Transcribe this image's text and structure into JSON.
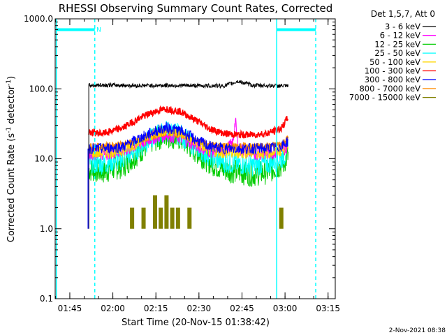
{
  "chart_data": {
    "type": "line",
    "title": "RHESSI Observing Summary Count Rates, Corrected",
    "xlabel": "Start Time (20-Nov-15 01:38:42)",
    "ylabel_main": "Corrected Count Rate (s",
    "ylabel_sup1": "-1",
    "ylabel_mid": " detector",
    "ylabel_sup2": "-1",
    "ylabel_end": ")",
    "yscale": "log",
    "ylim": [
      0.1,
      1000.0
    ],
    "xlim_minutes": [
      1.2,
      98.8
    ],
    "y_ticks": [
      "1000.0",
      "100.0",
      "10.0",
      "1.0",
      "0.1"
    ],
    "x_ticks": [
      {
        "label": "01:45",
        "minute": 6.3
      },
      {
        "label": "02:00",
        "minute": 21.3
      },
      {
        "label": "02:15",
        "minute": 36.3
      },
      {
        "label": "02:30",
        "minute": 51.3
      },
      {
        "label": "02:45",
        "minute": 66.3
      },
      {
        "label": "03:00",
        "minute": 81.3
      },
      {
        "label": "03:15",
        "minute": 96.3
      }
    ],
    "legend_title": "Det 1,5,7, Att 0",
    "legend_position": "right",
    "series": [
      {
        "name": "3 - 6 keV",
        "color": "#000000",
        "x": [
          12.9,
          20,
          30,
          40,
          50,
          60,
          65,
          70,
          75,
          80,
          82.4
        ],
        "y": [
          112,
          113,
          111,
          112,
          111,
          110,
          128,
          112,
          111,
          110,
          109
        ]
      },
      {
        "name": "6 - 12 keV",
        "color": "#ff00ff",
        "x": [
          12.9,
          18,
          25,
          30,
          35,
          40,
          45,
          50,
          55,
          60,
          63,
          64,
          65,
          70,
          75,
          80,
          82.4
        ],
        "y": [
          12,
          12,
          13,
          16,
          20,
          22,
          20,
          16,
          13,
          13,
          16,
          35,
          14,
          12,
          12,
          13,
          15
        ]
      },
      {
        "name": "12 - 25 keV",
        "color": "#00cc00",
        "x": [
          12.9,
          18,
          25,
          30,
          35,
          40,
          45,
          50,
          55,
          60,
          65,
          70,
          75,
          80,
          82.4
        ],
        "y": [
          7,
          6.5,
          8,
          12,
          18,
          22,
          19,
          13,
          9,
          7,
          6.5,
          6,
          6.5,
          8,
          11
        ]
      },
      {
        "name": "25 - 50 keV",
        "color": "#00ffff",
        "x": [
          12.9,
          18,
          25,
          30,
          35,
          40,
          45,
          50,
          55,
          60,
          65,
          70,
          75,
          80,
          82.4
        ],
        "y": [
          9,
          8.5,
          10,
          14,
          20,
          25,
          22,
          15,
          11,
          9,
          8.5,
          8,
          8.5,
          10,
          13
        ]
      },
      {
        "name": "50 - 100 keV",
        "color": "#ffd700",
        "x": [
          12.9,
          18,
          25,
          30,
          35,
          40,
          45,
          50,
          55,
          60,
          65,
          70,
          75,
          80,
          82.4
        ],
        "y": [
          12,
          12,
          13,
          17,
          22,
          26,
          23,
          17,
          13,
          12,
          12,
          12,
          12,
          13,
          16
        ]
      },
      {
        "name": "100 - 300 keV",
        "color": "#ff0000",
        "x": [
          12.9,
          18,
          25,
          30,
          35,
          40,
          45,
          50,
          55,
          60,
          65,
          70,
          75,
          80,
          82.4
        ],
        "y": [
          24,
          23,
          28,
          37,
          46,
          52,
          47,
          36,
          27,
          23,
          22,
          22,
          23,
          27,
          40
        ]
      },
      {
        "name": "300 - 800 keV",
        "color": "#0000ff",
        "x": [
          12.9,
          18,
          25,
          30,
          35,
          40,
          45,
          50,
          55,
          60,
          65,
          70,
          75,
          80,
          82.4
        ],
        "y": [
          14,
          14,
          15,
          19,
          24,
          28,
          25,
          19,
          15,
          14,
          14,
          14,
          14,
          15,
          18
        ]
      },
      {
        "name": "800 - 7000 keV",
        "color": "#ff8c00",
        "x": [
          12.9,
          18,
          25,
          30,
          35,
          40,
          45,
          50,
          55,
          60,
          65,
          70,
          75,
          80,
          82.4
        ],
        "y": [
          15,
          15,
          16,
          18,
          21,
          24,
          22,
          18,
          16,
          15,
          15,
          15,
          15,
          16,
          20
        ]
      },
      {
        "name": "7000 - 15000 keV",
        "color": "#808000",
        "x": [
          20,
          25,
          26,
          28,
          30,
          32,
          34,
          36,
          38,
          40,
          42,
          44,
          46,
          48,
          50,
          52,
          55,
          60,
          66,
          70,
          74,
          78,
          80,
          82
        ],
        "y": [
          1,
          1,
          1,
          2,
          1,
          2,
          1,
          3,
          2,
          3,
          2,
          2,
          1,
          2,
          1,
          1,
          1,
          1,
          1,
          1,
          1,
          1,
          2,
          1
        ]
      }
    ],
    "vertical_markers": [
      {
        "minute": 1.6,
        "color": "#00ffff",
        "style": "solid"
      },
      {
        "minute": 15.0,
        "color": "#00ffff",
        "style": "dashed"
      },
      {
        "minute": 78.4,
        "color": "#00ffff",
        "style": "solid"
      },
      {
        "minute": 92.0,
        "color": "#00ffff",
        "style": "dashed"
      }
    ],
    "horizontal_bars": [
      {
        "x_start": 1.6,
        "x_end": 15.0,
        "y": 700,
        "color": "#00ffff"
      },
      {
        "x_start": 78.4,
        "x_end": 92.0,
        "y": 700,
        "color": "#00ffff"
      }
    ],
    "annotations": [
      {
        "text": "N",
        "x": 15.6,
        "y": 720,
        "color": "#00ffff"
      }
    ],
    "footer": "2-Nov-2021 08:38"
  }
}
